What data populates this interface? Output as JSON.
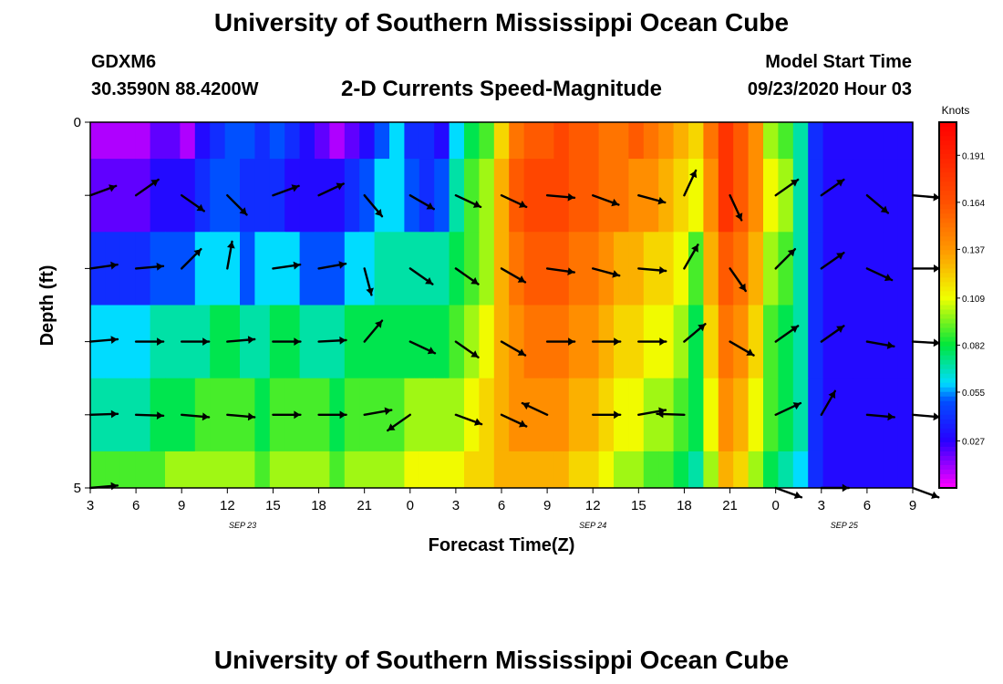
{
  "header": {
    "title": "University of Southern Mississippi Ocean Cube",
    "station_id": "GDXM6",
    "location": "30.3590N 88.4200W",
    "subtitle": "2-D Currents Speed-Magnitude",
    "model_start_label": "Model Start Time",
    "model_start_value": "09/23/2020 Hour 03"
  },
  "footer": {
    "title": "University of Southern Mississippi Ocean Cube"
  },
  "chart_data": {
    "type": "heatmap",
    "title": "2-D Currents Speed-Magnitude",
    "xlabel": "Forecast Time(Z)",
    "ylabel": "Depth (ft)",
    "x_hours_from_start": [
      0,
      54
    ],
    "x_tick_labels": [
      "3",
      "6",
      "9",
      "12",
      "15",
      "18",
      "21",
      "0",
      "3",
      "6",
      "9",
      "12",
      "15",
      "18",
      "21",
      "0",
      "3",
      "6",
      "9"
    ],
    "date_labels": [
      {
        "text": "SEP 23",
        "hour": 10
      },
      {
        "text": "SEP 24",
        "hour": 33
      },
      {
        "text": "SEP 25",
        "hour": 49.5
      }
    ],
    "y_tick_labels": [
      "0",
      "5"
    ],
    "ylim": [
      0,
      5
    ],
    "depth_levels_ft": [
      0,
      1,
      2,
      3,
      4,
      5
    ],
    "colorbar": {
      "label": "Knots",
      "range": [
        0,
        0.21
      ],
      "ticks": [
        0.027,
        0.055,
        0.082,
        0.109,
        0.137,
        0.164,
        0.191
      ],
      "tick_labels": [
        "0.027",
        "0.055",
        "0.082",
        "0.109",
        "0.137",
        "0.164",
        "0.191"
      ]
    },
    "speed_knots": [
      [
        0.01,
        0.01,
        0.01,
        0.01,
        0.02,
        0.02,
        0.01,
        0.03,
        0.04,
        0.05,
        0.05,
        0.04,
        0.05,
        0.04,
        0.03,
        0.02,
        0.01,
        0.02,
        0.03,
        0.05,
        0.06,
        0.04,
        0.04,
        0.03,
        0.06,
        0.08,
        0.09,
        0.12,
        0.15,
        0.16,
        0.16,
        0.17,
        0.16,
        0.16,
        0.15,
        0.15,
        0.16,
        0.15,
        0.14,
        0.13,
        0.12,
        0.15,
        0.18,
        0.16,
        0.14,
        0.1,
        0.09,
        0.07,
        0.04,
        0.03,
        0.03,
        0.03,
        0.03,
        0.03,
        0.03
      ],
      [
        0.02,
        0.02,
        0.02,
        0.02,
        0.03,
        0.03,
        0.03,
        0.04,
        0.05,
        0.05,
        0.04,
        0.04,
        0.04,
        0.03,
        0.03,
        0.03,
        0.03,
        0.04,
        0.05,
        0.06,
        0.06,
        0.05,
        0.04,
        0.05,
        0.07,
        0.09,
        0.1,
        0.13,
        0.16,
        0.17,
        0.17,
        0.17,
        0.16,
        0.16,
        0.15,
        0.15,
        0.14,
        0.14,
        0.13,
        0.12,
        0.11,
        0.14,
        0.18,
        0.16,
        0.14,
        0.11,
        0.1,
        0.07,
        0.04,
        0.03,
        0.03,
        0.03,
        0.03,
        0.03,
        0.03
      ],
      [
        0.04,
        0.04,
        0.04,
        0.04,
        0.05,
        0.05,
        0.05,
        0.06,
        0.06,
        0.06,
        0.05,
        0.06,
        0.06,
        0.06,
        0.05,
        0.05,
        0.05,
        0.06,
        0.06,
        0.07,
        0.07,
        0.07,
        0.07,
        0.07,
        0.08,
        0.09,
        0.1,
        0.13,
        0.15,
        0.16,
        0.16,
        0.16,
        0.15,
        0.15,
        0.14,
        0.13,
        0.13,
        0.12,
        0.12,
        0.11,
        0.09,
        0.13,
        0.16,
        0.15,
        0.13,
        0.1,
        0.09,
        0.07,
        0.04,
        0.03,
        0.03,
        0.03,
        0.03,
        0.03,
        0.03
      ],
      [
        0.06,
        0.06,
        0.06,
        0.06,
        0.07,
        0.07,
        0.07,
        0.07,
        0.08,
        0.08,
        0.07,
        0.07,
        0.08,
        0.08,
        0.07,
        0.07,
        0.07,
        0.08,
        0.08,
        0.08,
        0.08,
        0.08,
        0.08,
        0.08,
        0.09,
        0.1,
        0.11,
        0.13,
        0.14,
        0.15,
        0.15,
        0.15,
        0.14,
        0.14,
        0.13,
        0.12,
        0.12,
        0.11,
        0.11,
        0.1,
        0.08,
        0.12,
        0.15,
        0.14,
        0.12,
        0.09,
        0.08,
        0.07,
        0.04,
        0.03,
        0.03,
        0.03,
        0.03,
        0.03,
        0.03
      ],
      [
        0.07,
        0.07,
        0.07,
        0.07,
        0.08,
        0.08,
        0.08,
        0.09,
        0.09,
        0.09,
        0.09,
        0.08,
        0.09,
        0.09,
        0.09,
        0.09,
        0.08,
        0.09,
        0.09,
        0.09,
        0.09,
        0.1,
        0.1,
        0.1,
        0.1,
        0.11,
        0.12,
        0.13,
        0.14,
        0.14,
        0.14,
        0.14,
        0.13,
        0.13,
        0.12,
        0.11,
        0.11,
        0.1,
        0.1,
        0.09,
        0.08,
        0.11,
        0.14,
        0.13,
        0.11,
        0.09,
        0.08,
        0.07,
        0.04,
        0.03,
        0.03,
        0.03,
        0.03,
        0.03,
        0.03
      ],
      [
        0.09,
        0.09,
        0.09,
        0.09,
        0.09,
        0.1,
        0.1,
        0.1,
        0.1,
        0.1,
        0.1,
        0.09,
        0.1,
        0.1,
        0.1,
        0.1,
        0.09,
        0.1,
        0.1,
        0.1,
        0.1,
        0.11,
        0.11,
        0.11,
        0.11,
        0.12,
        0.12,
        0.13,
        0.13,
        0.13,
        0.13,
        0.13,
        0.12,
        0.12,
        0.11,
        0.1,
        0.1,
        0.09,
        0.09,
        0.08,
        0.07,
        0.1,
        0.13,
        0.12,
        0.1,
        0.08,
        0.07,
        0.06,
        0.04,
        0.03,
        0.03,
        0.03,
        0.03,
        0.03,
        0.03
      ]
    ],
    "vectors": [
      {
        "hour": 0,
        "depth": 1,
        "angle": 20
      },
      {
        "hour": 3,
        "depth": 1,
        "angle": 35
      },
      {
        "hour": 6,
        "depth": 1,
        "angle": -35
      },
      {
        "hour": 9,
        "depth": 1,
        "angle": -45
      },
      {
        "hour": 12,
        "depth": 1,
        "angle": 20
      },
      {
        "hour": 15,
        "depth": 1,
        "angle": 25
      },
      {
        "hour": 18,
        "depth": 1,
        "angle": -50
      },
      {
        "hour": 21,
        "depth": 1,
        "angle": -30
      },
      {
        "hour": 24,
        "depth": 1,
        "angle": -25
      },
      {
        "hour": 27,
        "depth": 1,
        "angle": -25
      },
      {
        "hour": 30,
        "depth": 1,
        "angle": -5
      },
      {
        "hour": 33,
        "depth": 1,
        "angle": -20
      },
      {
        "hour": 36,
        "depth": 1,
        "angle": -15
      },
      {
        "hour": 39,
        "depth": 1,
        "angle": 65
      },
      {
        "hour": 42,
        "depth": 1,
        "angle": -65
      },
      {
        "hour": 45,
        "depth": 1,
        "angle": 35
      },
      {
        "hour": 48,
        "depth": 1,
        "angle": 35
      },
      {
        "hour": 51,
        "depth": 1,
        "angle": -40
      },
      {
        "hour": 54,
        "depth": 1,
        "angle": -5
      },
      {
        "hour": 0,
        "depth": 2,
        "angle": 8
      },
      {
        "hour": 3,
        "depth": 2,
        "angle": 5
      },
      {
        "hour": 6,
        "depth": 2,
        "angle": 45
      },
      {
        "hour": 9,
        "depth": 2,
        "angle": 80
      },
      {
        "hour": 12,
        "depth": 2,
        "angle": 8
      },
      {
        "hour": 15,
        "depth": 2,
        "angle": 10
      },
      {
        "hour": 18,
        "depth": 2,
        "angle": -75
      },
      {
        "hour": 21,
        "depth": 2,
        "angle": -35
      },
      {
        "hour": 24,
        "depth": 2,
        "angle": -35
      },
      {
        "hour": 27,
        "depth": 2,
        "angle": -30
      },
      {
        "hour": 30,
        "depth": 2,
        "angle": -8
      },
      {
        "hour": 33,
        "depth": 2,
        "angle": -15
      },
      {
        "hour": 36,
        "depth": 2,
        "angle": -5
      },
      {
        "hour": 39,
        "depth": 2,
        "angle": 60
      },
      {
        "hour": 42,
        "depth": 2,
        "angle": -55
      },
      {
        "hour": 45,
        "depth": 2,
        "angle": 45
      },
      {
        "hour": 48,
        "depth": 2,
        "angle": 35
      },
      {
        "hour": 51,
        "depth": 2,
        "angle": -25
      },
      {
        "hour": 54,
        "depth": 2,
        "angle": 0
      },
      {
        "hour": 0,
        "depth": 3,
        "angle": 5
      },
      {
        "hour": 3,
        "depth": 3,
        "angle": 0
      },
      {
        "hour": 6,
        "depth": 3,
        "angle": 0
      },
      {
        "hour": 9,
        "depth": 3,
        "angle": 5
      },
      {
        "hour": 12,
        "depth": 3,
        "angle": 0
      },
      {
        "hour": 15,
        "depth": 3,
        "angle": 3
      },
      {
        "hour": 18,
        "depth": 3,
        "angle": 50
      },
      {
        "hour": 21,
        "depth": 3,
        "angle": -25
      },
      {
        "hour": 24,
        "depth": 3,
        "angle": -35
      },
      {
        "hour": 27,
        "depth": 3,
        "angle": -30
      },
      {
        "hour": 30,
        "depth": 3,
        "angle": 0
      },
      {
        "hour": 33,
        "depth": 3,
        "angle": 0
      },
      {
        "hour": 36,
        "depth": 3,
        "angle": 0
      },
      {
        "hour": 39,
        "depth": 3,
        "angle": 40
      },
      {
        "hour": 42,
        "depth": 3,
        "angle": -30
      },
      {
        "hour": 45,
        "depth": 3,
        "angle": 35
      },
      {
        "hour": 48,
        "depth": 3,
        "angle": 35
      },
      {
        "hour": 51,
        "depth": 3,
        "angle": -10
      },
      {
        "hour": 54,
        "depth": 3,
        "angle": -3
      },
      {
        "hour": 0,
        "depth": 4,
        "angle": 2
      },
      {
        "hour": 3,
        "depth": 4,
        "angle": -2
      },
      {
        "hour": 6,
        "depth": 4,
        "angle": -5
      },
      {
        "hour": 9,
        "depth": 4,
        "angle": -5
      },
      {
        "hour": 12,
        "depth": 4,
        "angle": 0
      },
      {
        "hour": 15,
        "depth": 4,
        "angle": 0
      },
      {
        "hour": 18,
        "depth": 4,
        "angle": 10
      },
      {
        "hour": 21,
        "depth": 4,
        "angle": -145
      },
      {
        "hour": 24,
        "depth": 4,
        "angle": -20
      },
      {
        "hour": 27,
        "depth": 4,
        "angle": -25
      },
      {
        "hour": 30,
        "depth": 4,
        "angle": 155
      },
      {
        "hour": 33,
        "depth": 4,
        "angle": 0
      },
      {
        "hour": 36,
        "depth": 4,
        "angle": 10
      },
      {
        "hour": 39,
        "depth": 4,
        "angle": 178
      },
      {
        "hour": 45,
        "depth": 4,
        "angle": 25
      },
      {
        "hour": 48,
        "depth": 4,
        "angle": 60
      },
      {
        "hour": 51,
        "depth": 4,
        "angle": -5
      },
      {
        "hour": 54,
        "depth": 4,
        "angle": -5
      },
      {
        "hour": 0,
        "depth": 5,
        "angle": 5
      },
      {
        "hour": 45,
        "depth": 5,
        "angle": -20
      },
      {
        "hour": 48,
        "depth": 5,
        "angle": 0
      },
      {
        "hour": 54,
        "depth": 5,
        "angle": -20
      }
    ]
  }
}
